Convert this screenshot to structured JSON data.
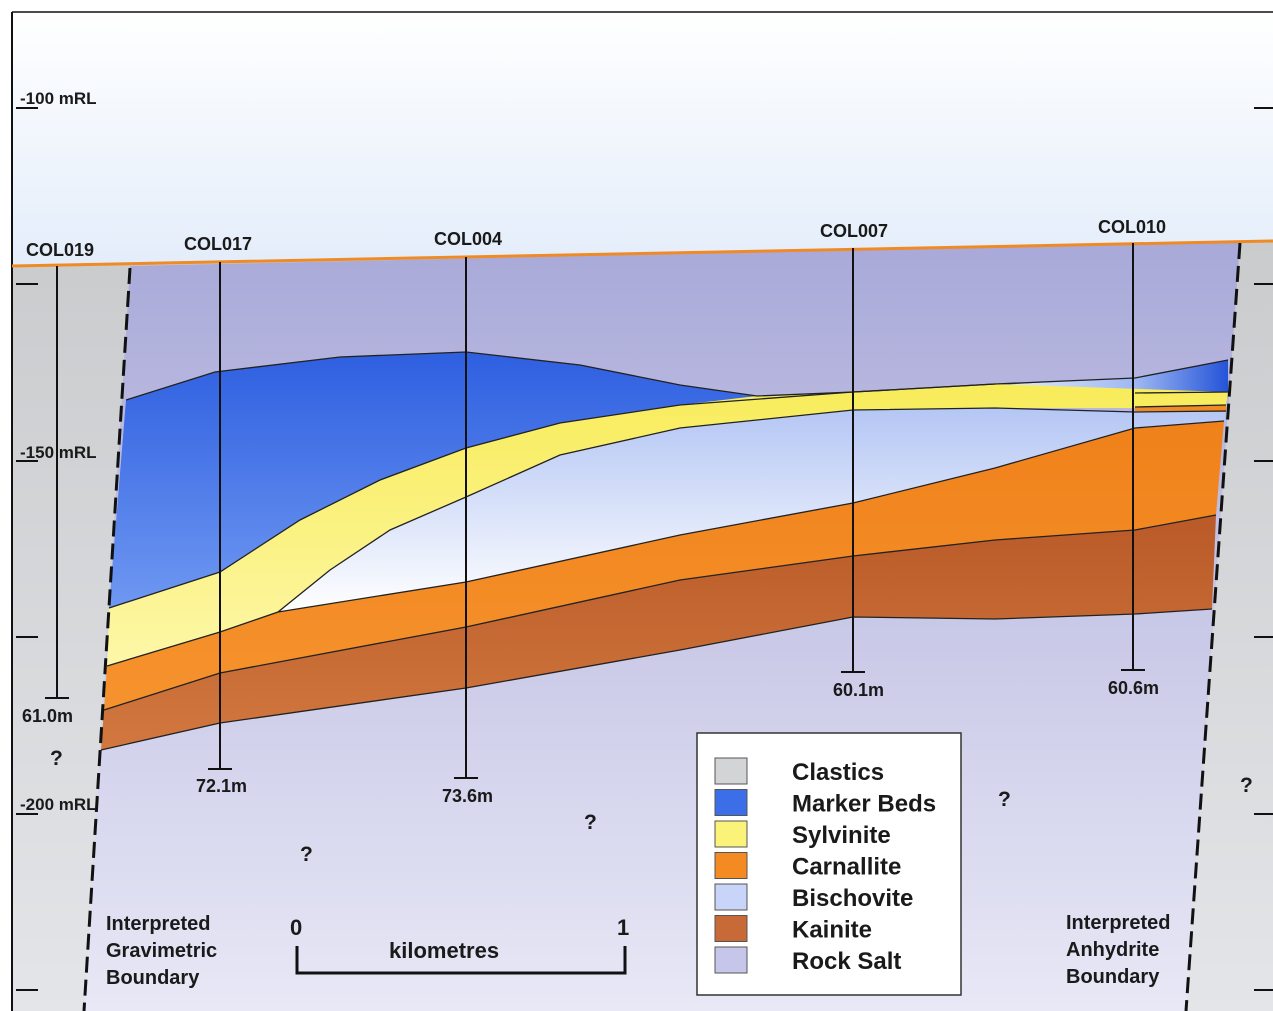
{
  "elevation_labels": [
    "-100 mRL",
    "-150 mRL",
    "-200 mRL"
  ],
  "drillholes": [
    {
      "id": "COL019",
      "depth": "61.0m"
    },
    {
      "id": "COL017",
      "depth": "72.1m"
    },
    {
      "id": "COL004",
      "depth": "73.6m"
    },
    {
      "id": "COL007",
      "depth": "60.1m"
    },
    {
      "id": "COL010",
      "depth": "60.6m"
    }
  ],
  "unknown_marks": [
    "?",
    "?",
    "?",
    "?",
    "?",
    "?"
  ],
  "boundaries": {
    "left": [
      "Interpreted",
      "Gravimetric",
      "Boundary"
    ],
    "right": [
      "Interpreted",
      "Anhydrite",
      "Boundary"
    ]
  },
  "scale_bar": {
    "start": "0",
    "end": "1",
    "unit": "kilometres"
  },
  "legend": [
    {
      "label": "Clastics",
      "color": "#d2d4d6"
    },
    {
      "label": "Marker Beds",
      "color": "#3c6ee8"
    },
    {
      "label": "Sylvinite",
      "color": "#fbf27a"
    },
    {
      "label": "Carnallite",
      "color": "#f48a22"
    },
    {
      "label": "Bischovite",
      "color": "#c8d4f8"
    },
    {
      "label": "Kainite",
      "color": "#c86a38"
    },
    {
      "label": "Rock Salt",
      "color": "#c6c6ea"
    }
  ],
  "colors": {
    "sky_top": "#ffffff",
    "sky_bottom": "#e4eefa",
    "surface_line": "#f08a24"
  }
}
